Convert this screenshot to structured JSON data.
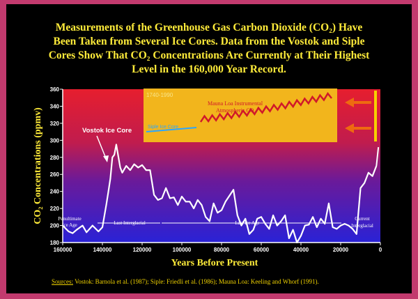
{
  "title_lines": [
    "Measurements of the Greenhouse Gas Carbon Dioxide (CO₂) Have",
    "Been Taken from Several Ice Cores.  Data from the Vostok and Siple",
    "Cores Show That CO₂ Concentrations Are Currently at Their Highest",
    "Level in the 160,000 Year Record."
  ],
  "sources": {
    "label": "Sources:",
    "text": "Vostok:  Barnola et al. (1987);  Siple:  Friedli et al. (1986); Mauna Loa:  Keeling and Whorf (1991)."
  },
  "colors": {
    "title": "#ffec3a",
    "axis_text": "#ffffff",
    "line": "#ffffff",
    "inset_bg": "#f2b51c",
    "mauna_loa": "#d0182a",
    "siple": "#2aa6ff",
    "arrow": "#ee6a10"
  },
  "chart_data": {
    "type": "line",
    "xlabel": "Years Before Present",
    "ylabel": "CO₂ Concentrations (ppmv)",
    "xlim": [
      160000,
      0
    ],
    "ylim": [
      180,
      360
    ],
    "xticks": [
      "160000",
      "140000",
      "120000",
      "100000",
      "80000",
      "60000",
      "40000",
      "20000",
      "0"
    ],
    "yticks": [
      "180",
      "200",
      "220",
      "240",
      "260",
      "280",
      "300",
      "320",
      "340",
      "360"
    ],
    "series": [
      {
        "name": "Vostok Ice Core",
        "x": [
          160000,
          157000,
          155000,
          153000,
          150000,
          148000,
          145000,
          142000,
          140000,
          138000,
          137000,
          136000,
          135000,
          134000,
          133000,
          131000,
          130000,
          128000,
          126000,
          124000,
          122000,
          120000,
          118000,
          116000,
          114000,
          112000,
          110000,
          108000,
          106000,
          104000,
          102000,
          100000,
          98000,
          96000,
          94000,
          92000,
          90000,
          88000,
          86000,
          84000,
          82000,
          80000,
          78000,
          76000,
          74000,
          72000,
          70000,
          68000,
          66000,
          64000,
          62000,
          60000,
          58000,
          56000,
          54000,
          52000,
          50000,
          48000,
          46000,
          44000,
          42000,
          40000,
          38000,
          36000,
          34000,
          32000,
          30000,
          28000,
          26000,
          24000,
          22000,
          20000,
          18000,
          16000,
          14000,
          12000,
          10000,
          8000,
          6000,
          4000,
          2000
        ],
        "y": [
          200,
          193,
          191,
          195,
          200,
          192,
          200,
          193,
          198,
          225,
          240,
          255,
          280,
          283,
          295,
          268,
          262,
          270,
          265,
          272,
          268,
          271,
          265,
          265,
          236,
          230,
          232,
          244,
          232,
          233,
          224,
          234,
          228,
          228,
          220,
          230,
          224,
          210,
          205,
          226,
          215,
          218,
          228,
          235,
          242,
          212,
          200,
          208,
          190,
          195,
          208,
          210,
          202,
          196,
          212,
          200,
          205,
          212,
          185,
          195,
          180,
          188,
          200,
          201,
          210,
          198,
          208,
          202,
          226,
          198,
          196,
          200,
          202,
          200,
          196,
          190,
          244,
          250,
          262,
          258,
          270
        ],
        "label": "Vostok Ice Core"
      },
      {
        "name": "Siple Ice Core",
        "label": "Siple Ice Core",
        "years": [
          1744,
          1953
        ],
        "values": [
          277,
          315
        ]
      },
      {
        "name": "Mauna Loa Instrumental Atmospheric CO₂",
        "label": "Mauna Loa Instrumental Atmospheric CO₂",
        "years": [
          1958,
          1990
        ],
        "values": [
          315,
          353
        ]
      }
    ],
    "inset": {
      "range_label": "1740-1990",
      "ylabel": "Siple Ice Core",
      "y_left_label": "Siple Ice Core"
    },
    "annotations": [
      {
        "text": "Vostok Ice Core"
      },
      {
        "text": "Penultimate Ice Age"
      },
      {
        "text": "Last Interglacial"
      },
      {
        "text": "Last Ice Age"
      },
      {
        "text": "Current Interglacial"
      }
    ]
  }
}
